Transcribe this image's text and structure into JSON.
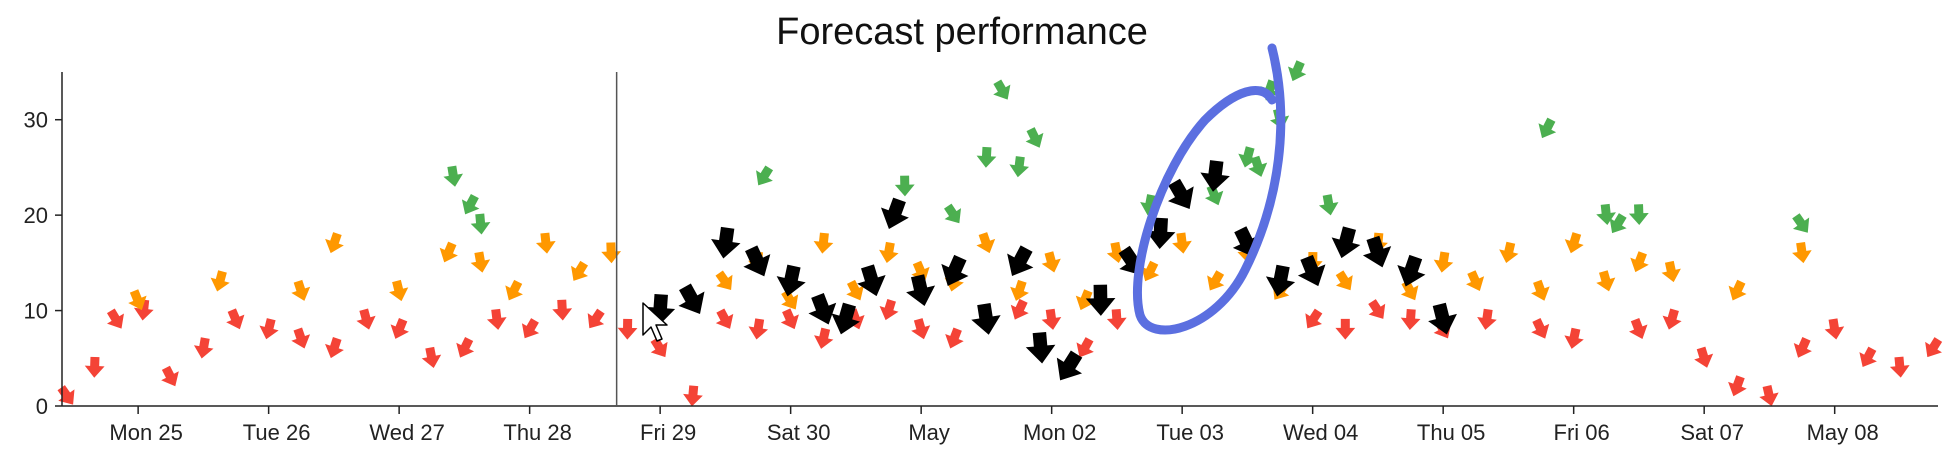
{
  "chart_data": {
    "type": "scatter",
    "title": "Forecast performance",
    "xlabel": "",
    "ylabel": "",
    "x_domain": [
      "2022-04-24T10:00",
      "2022-05-08T19:00"
    ],
    "ylim": [
      0,
      35
    ],
    "y_ticks": [
      0,
      10,
      20,
      30
    ],
    "x_ticks": [
      {
        "label": "Mon 25",
        "date": "2022-04-25"
      },
      {
        "label": "Tue 26",
        "date": "2022-04-26"
      },
      {
        "label": "Wed 27",
        "date": "2022-04-27"
      },
      {
        "label": "Thu 28",
        "date": "2022-04-28"
      },
      {
        "label": "Fri 29",
        "date": "2022-04-29"
      },
      {
        "label": "Sat 30",
        "date": "2022-04-30"
      },
      {
        "label": "May",
        "date": "2022-05-01"
      },
      {
        "label": "Mon 02",
        "date": "2022-05-02"
      },
      {
        "label": "Tue 03",
        "date": "2022-05-03"
      },
      {
        "label": "Wed 04",
        "date": "2022-05-04"
      },
      {
        "label": "Thu 05",
        "date": "2022-05-05"
      },
      {
        "label": "Fri 06",
        "date": "2022-05-06"
      },
      {
        "label": "Sat 07",
        "date": "2022-05-07"
      },
      {
        "label": "May 08",
        "date": "2022-05-08"
      }
    ],
    "reference_line_date": "2022-04-28T16:00",
    "grid": false,
    "legend": "none",
    "marker": "arrow",
    "colors": {
      "red": "#f44336",
      "orange": "#ff9800",
      "green": "#4caf50",
      "black": "#000000",
      "annotation": "#5b6fe0"
    },
    "series": [
      {
        "color": "red",
        "x": [
          "2022-04-24T11:00",
          "2022-04-24T16:00",
          "2022-04-24T20:00",
          "2022-04-25T01:00",
          "2022-04-25T06:00",
          "2022-04-25T12:00",
          "2022-04-25T18:00",
          "2022-04-26T00:00",
          "2022-04-26T06:00",
          "2022-04-26T12:00",
          "2022-04-26T18:00",
          "2022-04-27T00:00",
          "2022-04-27T06:00",
          "2022-04-27T12:00",
          "2022-04-27T18:00",
          "2022-04-28T00:00",
          "2022-04-28T06:00",
          "2022-04-28T12:00",
          "2022-04-28T18:00",
          "2022-04-29T00:00",
          "2022-04-29T06:00",
          "2022-04-29T12:00",
          "2022-04-29T18:00",
          "2022-04-30T00:00",
          "2022-04-30T06:00",
          "2022-04-30T12:00",
          "2022-04-30T18:00",
          "2022-05-01T00:00",
          "2022-05-01T06:00",
          "2022-05-01T12:00",
          "2022-05-01T18:00",
          "2022-05-02T00:00",
          "2022-05-02T06:00",
          "2022-05-02T12:00",
          "2022-05-04T00:00",
          "2022-05-04T06:00",
          "2022-05-04T12:00",
          "2022-05-04T18:00",
          "2022-05-05T00:00",
          "2022-05-05T08:00",
          "2022-05-05T18:00",
          "2022-05-06T00:00",
          "2022-05-06T12:00",
          "2022-05-06T18:00",
          "2022-05-07T00:00",
          "2022-05-07T06:00",
          "2022-05-07T12:00",
          "2022-05-07T18:00",
          "2022-05-08T00:00",
          "2022-05-08T06:00",
          "2022-05-08T12:00",
          "2022-05-08T18:00"
        ],
        "y": [
          1,
          4,
          9,
          10,
          3,
          6,
          9,
          8,
          7,
          6,
          9,
          8,
          5,
          6,
          9,
          8,
          10,
          9,
          8,
          6,
          1,
          9,
          8,
          9,
          7,
          9,
          10,
          8,
          7,
          9,
          10,
          9,
          6,
          9,
          9,
          8,
          10,
          9,
          8,
          9,
          8,
          7,
          8,
          9,
          5,
          2,
          1,
          6,
          8,
          5,
          4,
          6
        ]
      },
      {
        "color": "orange",
        "x": [
          "2022-04-25T00:00",
          "2022-04-25T15:00",
          "2022-04-26T06:00",
          "2022-04-26T12:00",
          "2022-04-27T00:00",
          "2022-04-27T09:00",
          "2022-04-27T15:00",
          "2022-04-27T21:00",
          "2022-04-28T03:00",
          "2022-04-28T09:00",
          "2022-04-28T15:00",
          "2022-04-29T12:00",
          "2022-04-29T18:00",
          "2022-04-30T00:00",
          "2022-04-30T06:00",
          "2022-04-30T12:00",
          "2022-04-30T18:00",
          "2022-05-01T00:00",
          "2022-05-01T06:00",
          "2022-05-01T12:00",
          "2022-05-01T18:00",
          "2022-05-02T00:00",
          "2022-05-02T06:00",
          "2022-05-02T12:00",
          "2022-05-02T18:00",
          "2022-05-03T00:00",
          "2022-05-03T06:00",
          "2022-05-03T12:00",
          "2022-05-03T18:00",
          "2022-05-04T00:00",
          "2022-05-04T06:00",
          "2022-05-04T12:00",
          "2022-05-04T18:00",
          "2022-05-05T00:00",
          "2022-05-05T06:00",
          "2022-05-05T12:00",
          "2022-05-05T18:00",
          "2022-05-06T00:00",
          "2022-05-06T06:00",
          "2022-05-06T12:00",
          "2022-05-06T18:00",
          "2022-05-07T06:00",
          "2022-05-07T18:00"
        ],
        "y": [
          11,
          13,
          12,
          17,
          12,
          16,
          15,
          12,
          17,
          14,
          16,
          13,
          15,
          11,
          17,
          12,
          16,
          14,
          13,
          17,
          12,
          15,
          11,
          16,
          14,
          17,
          13,
          16,
          12,
          15,
          13,
          17,
          12,
          15,
          13,
          16,
          12,
          17,
          13,
          15,
          14,
          12,
          16
        ]
      },
      {
        "color": "green",
        "x": [
          "2022-04-27T10:00",
          "2022-04-27T13:00",
          "2022-04-27T15:00",
          "2022-04-29T19:00",
          "2022-04-30T21:00",
          "2022-05-01T06:00",
          "2022-05-01T12:00",
          "2022-05-01T15:00",
          "2022-05-01T18:00",
          "2022-05-01T21:00",
          "2022-05-02T18:00",
          "2022-05-03T06:00",
          "2022-05-03T12:00",
          "2022-05-03T14:00",
          "2022-05-03T16:00",
          "2022-05-03T18:00",
          "2022-05-03T21:00",
          "2022-05-04T03:00",
          "2022-05-05T19:00",
          "2022-05-06T06:00",
          "2022-05-06T08:00",
          "2022-05-06T12:00",
          "2022-05-07T18:00"
        ],
        "y": [
          24,
          21,
          19,
          24,
          23,
          20,
          26,
          33,
          25,
          28,
          21,
          22,
          26,
          25,
          33,
          30,
          35,
          21,
          29,
          20,
          19,
          20,
          19
        ]
      },
      {
        "color": "black",
        "x": [
          "2022-04-29T00:00",
          "2022-04-29T06:00",
          "2022-04-29T12:00",
          "2022-04-29T18:00",
          "2022-04-30T00:00",
          "2022-04-30T06:00",
          "2022-04-30T10:00",
          "2022-04-30T15:00",
          "2022-04-30T19:00",
          "2022-05-01T00:00",
          "2022-05-01T06:00",
          "2022-05-01T12:00",
          "2022-05-01T18:00",
          "2022-05-01T22:00",
          "2022-05-02T03:00",
          "2022-05-02T09:00",
          "2022-05-02T15:00",
          "2022-05-02T20:00",
          "2022-05-03T00:00",
          "2022-05-03T06:00",
          "2022-05-03T12:00",
          "2022-05-03T18:00",
          "2022-05-04T00:00",
          "2022-05-04T06:00",
          "2022-05-04T12:00",
          "2022-05-04T18:00",
          "2022-05-05T00:00"
        ],
        "y": [
          10,
          11,
          17,
          15,
          13,
          10,
          9,
          13,
          20,
          12,
          14,
          9,
          15,
          6,
          4,
          11,
          15,
          18,
          22,
          24,
          17,
          13,
          14,
          17,
          16,
          14,
          9
        ]
      }
    ],
    "annotations": [
      {
        "type": "freehand-loop",
        "color": "annotation"
      },
      {
        "type": "mouse-cursor"
      }
    ]
  }
}
